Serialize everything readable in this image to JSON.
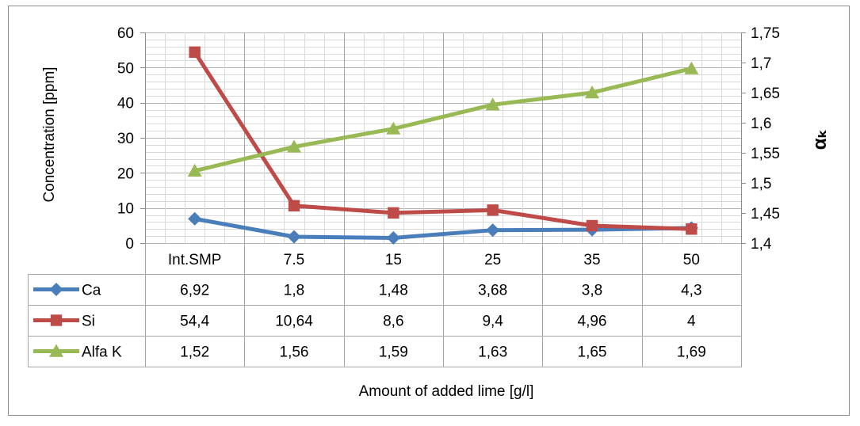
{
  "chart_data": {
    "type": "line",
    "categories": [
      "Int.SMP",
      "7.5",
      "15",
      "25",
      "35",
      "50"
    ],
    "xlabel": "Amount of added lime [g/l]",
    "ylabel_left": "Concentration [ppm]",
    "ylabel_right": "αₖ",
    "y_left": {
      "min": 0,
      "max": 60,
      "major_step": 10,
      "minor_step": 2,
      "tick_labels": [
        "0",
        "10",
        "20",
        "30",
        "40",
        "50",
        "60"
      ]
    },
    "y_right": {
      "min": 1.4,
      "max": 1.75,
      "major_step": 0.05,
      "tick_labels": [
        "1,4",
        "1,45",
        "1,5",
        "1,55",
        "1,6",
        "1,65",
        "1,7",
        "1,75"
      ]
    },
    "grid": true,
    "legend_placement": "data-table-left",
    "series": [
      {
        "name": "Ca",
        "axis": "left",
        "color": "#4a7ebb",
        "marker": "diamond",
        "values": [
          6.92,
          1.8,
          1.48,
          3.68,
          3.8,
          4.3
        ],
        "labels": [
          "6,92",
          "1,8",
          "1,48",
          "3,68",
          "3,8",
          "4,3"
        ]
      },
      {
        "name": "Si",
        "axis": "left",
        "color": "#be4b48",
        "marker": "square",
        "values": [
          54.4,
          10.64,
          8.6,
          9.4,
          4.96,
          4
        ],
        "labels": [
          "54,4",
          "10,64",
          "8,6",
          "9,4",
          "4,96",
          "4"
        ]
      },
      {
        "name": "Alfa K",
        "axis": "right",
        "color": "#98b954",
        "marker": "triangle",
        "values": [
          1.52,
          1.56,
          1.59,
          1.63,
          1.65,
          1.69
        ],
        "labels": [
          "1,52",
          "1,56",
          "1,59",
          "1,63",
          "1,65",
          "1,69"
        ]
      }
    ]
  }
}
